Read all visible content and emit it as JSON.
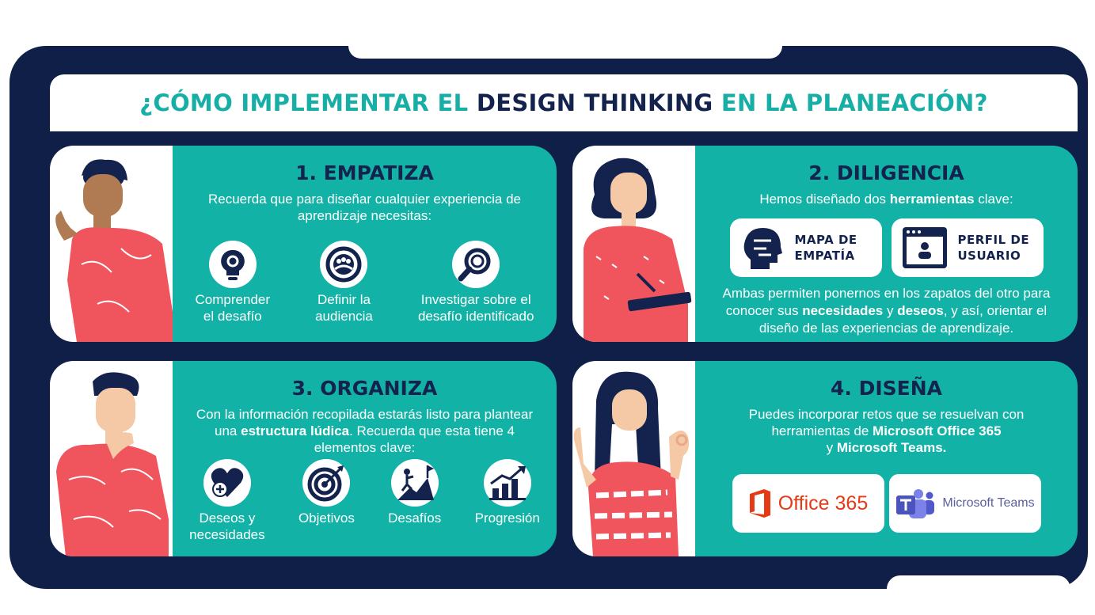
{
  "title": {
    "part1": "¿CÓMO IMPLEMENTAR EL ",
    "part2": "DESIGN THINKING",
    "part3": " EN LA PLANEACIÓN?"
  },
  "empatiza": {
    "heading": "1. EMPATIZA",
    "lead": "Recuerda que para diseñar cualquier experiencia de aprendizaje necesitas:",
    "items": [
      {
        "line1": "Comprender",
        "line2": "el desafío",
        "icon": "bulb-gear-icon"
      },
      {
        "line1": "Definir la",
        "line2": "audiencia",
        "icon": "audience-target-icon"
      },
      {
        "line1": "Investigar sobre el",
        "line2": "desafío identificado",
        "icon": "magnifier-icon"
      }
    ]
  },
  "diligencia": {
    "heading": "2. DILIGENCIA",
    "lead_pre": "Hemos diseñado dos ",
    "lead_bold": "herramientas",
    "lead_post": " clave:",
    "tools": [
      {
        "line1": "MAPA DE",
        "line2": "EMPATÍA",
        "icon": "head-map-icon"
      },
      {
        "line1": "PERFIL DE",
        "line2": "USUARIO",
        "icon": "user-profile-icon"
      }
    ],
    "desc_1": "Ambas permiten ponernos en los zapatos del otro para conocer sus ",
    "desc_b1": "necesidades",
    "desc_2": " y ",
    "desc_b2": "deseos",
    "desc_3": ", y así, orientar el diseño de las experiencias de aprendizaje."
  },
  "organiza": {
    "heading": "3. ORGANIZA",
    "lead_1": "Con la información recopilada estarás listo para plantear una ",
    "lead_bold": "estructura lúdica",
    "lead_2": ". Recuerda que esta tiene 4 elementos clave:",
    "items": [
      {
        "line1": "Deseos y",
        "line2": "necesidades",
        "icon": "heart-plus-icon"
      },
      {
        "line1": "Objetivos",
        "line2": "",
        "icon": "target-icon"
      },
      {
        "line1": "Desafíos",
        "line2": "",
        "icon": "climber-flag-icon"
      },
      {
        "line1": "Progresión",
        "line2": "",
        "icon": "growth-chart-icon"
      }
    ]
  },
  "disena": {
    "heading": "4. DISEÑA",
    "lead_1": "Puedes incorporar retos que se resuelvan con herramientas de ",
    "lead_b1": "Microsoft Office 365",
    "lead_2": " y ",
    "lead_b2": "Microsoft Teams.",
    "logos": [
      {
        "text": "Office 365",
        "icon": "office-logo-icon"
      },
      {
        "text": "Microsoft Teams",
        "icon": "teams-logo-icon"
      }
    ]
  },
  "colors": {
    "teal": "#12b2a7",
    "navy": "#13234d",
    "coral": "#f0545d",
    "frame": "#0f1f48"
  }
}
